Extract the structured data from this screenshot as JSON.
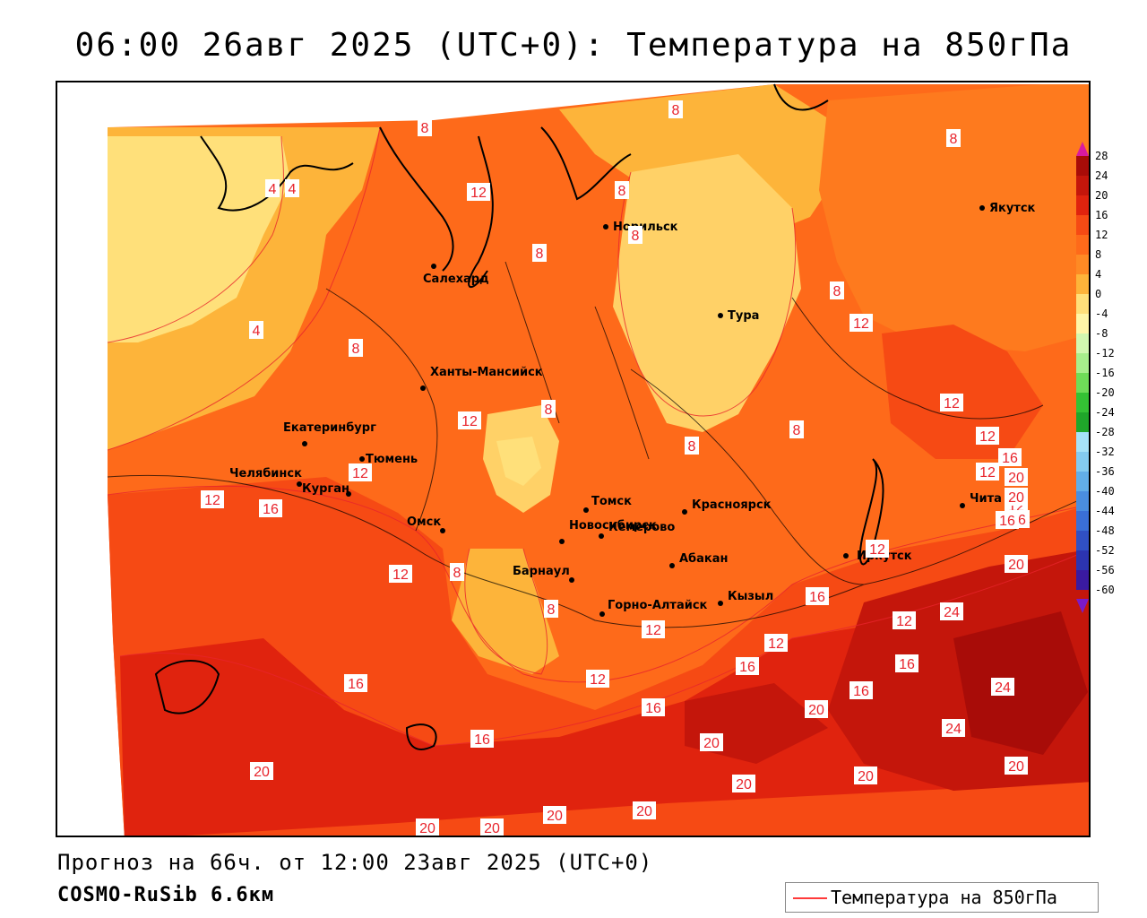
{
  "title": "06:00 26авг 2025 (UTC+0): Температура на 850гПа",
  "footer": {
    "forecast": "Прогноз на 66ч. от 12:00 23авг 2025 (UTC+0)",
    "model": "COSMO-RuSib 6.6км"
  },
  "legend": {
    "label": "Температура на 850гПа",
    "line_color": "#ff3a3a"
  },
  "colorbar": {
    "ticks": [
      "28",
      "24",
      "20",
      "16",
      "12",
      "8",
      "4",
      "0",
      "-4",
      "-8",
      "-12",
      "-16",
      "-20",
      "-24",
      "-28",
      "-32",
      "-36",
      "-40",
      "-44",
      "-48",
      "-52",
      "-56",
      "-60"
    ]
  },
  "cities": [
    {
      "name": "Якутск"
    },
    {
      "name": "Норильск"
    },
    {
      "name": "Салехард"
    },
    {
      "name": "Тура"
    },
    {
      "name": "Ханты-Мансийск"
    },
    {
      "name": "Екатеринбург"
    },
    {
      "name": "Тюмень"
    },
    {
      "name": "Челябинск"
    },
    {
      "name": "Курган"
    },
    {
      "name": "Омск"
    },
    {
      "name": "Новосибирск"
    },
    {
      "name": "Томск"
    },
    {
      "name": "Кемерово"
    },
    {
      "name": "Красноярск"
    },
    {
      "name": "Барнаул"
    },
    {
      "name": "Абакан"
    },
    {
      "name": "Горно-Алтайск"
    },
    {
      "name": "Кызыл"
    },
    {
      "name": "Иркутск"
    },
    {
      "name": "Чита"
    }
  ],
  "contour_labels": [
    "8",
    "8",
    "8",
    "8",
    "8",
    "8",
    "8",
    "8",
    "8",
    "8",
    "8",
    "8",
    "8",
    "4",
    "4",
    "4",
    "12",
    "12",
    "12",
    "12",
    "12",
    "12",
    "12",
    "12",
    "12",
    "12",
    "12",
    "12",
    "12",
    "12",
    "12",
    "16",
    "16",
    "16",
    "16",
    "16",
    "16",
    "16",
    "16",
    "16",
    "16",
    "16",
    "20",
    "20",
    "20",
    "20",
    "20",
    "20",
    "20",
    "20",
    "20",
    "20",
    "20",
    "20",
    "20",
    "24",
    "24",
    "24"
  ]
}
